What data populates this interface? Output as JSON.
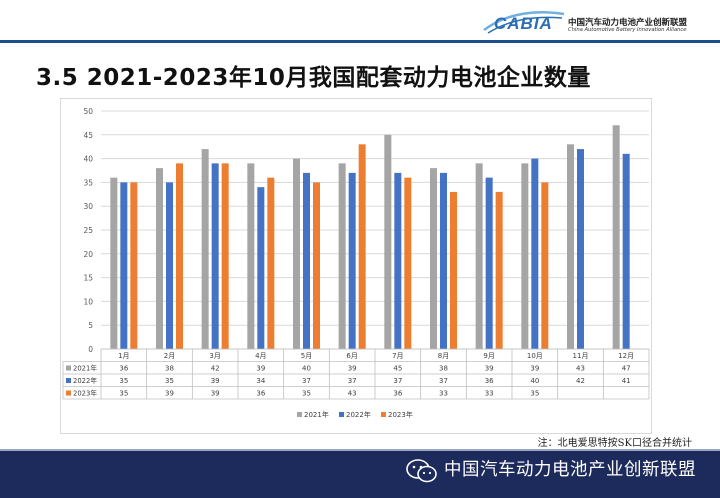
{
  "header": {
    "logo_text": "CABIA",
    "org_name_cn": "中国汽车动力电池产业创新联盟",
    "org_name_en": "China Automotive Battery Innovation Alliance"
  },
  "page_title": "3.5 2021-2023年10月我国配套动力电池企业数量",
  "chart_data": {
    "type": "bar",
    "title": "",
    "categories": [
      "1月",
      "2月",
      "3月",
      "4月",
      "5月",
      "6月",
      "7月",
      "8月",
      "9月",
      "10月",
      "11月",
      "12月"
    ],
    "series": [
      {
        "name": "2021年",
        "color": "#a5a5a5",
        "values": [
          36,
          38,
          42,
          39,
          40,
          39,
          45,
          38,
          39,
          39,
          43,
          47
        ]
      },
      {
        "name": "2022年",
        "color": "#4472c4",
        "values": [
          35,
          35,
          39,
          34,
          37,
          37,
          37,
          37,
          36,
          40,
          42,
          41
        ]
      },
      {
        "name": "2023年",
        "color": "#ed7d31",
        "values": [
          35,
          39,
          39,
          36,
          35,
          43,
          36,
          33,
          33,
          35,
          null,
          null
        ]
      }
    ],
    "ylim": [
      0,
      50
    ],
    "yticks": [
      0,
      5,
      10,
      15,
      20,
      25,
      30,
      35,
      40,
      45,
      50
    ],
    "grid": true,
    "legend": "bottom",
    "data_table": true
  },
  "note": "注：北电爱思特按SK口径合并统计",
  "footer": {
    "text": "中国汽车动力电池产业创新联盟"
  }
}
